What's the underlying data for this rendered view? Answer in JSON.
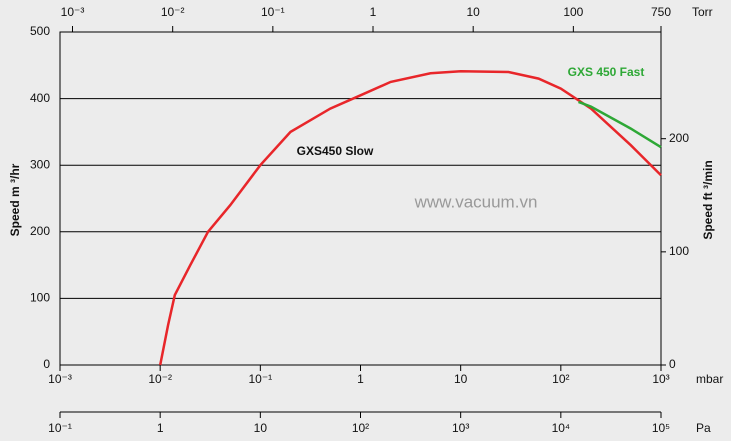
{
  "chart_data": {
    "type": "line",
    "x_scale": "log",
    "xlim": [
      0.001,
      1000
    ],
    "xticks": [
      {
        "value": 0.001,
        "label": "10⁻³"
      },
      {
        "value": 0.01,
        "label": "10⁻²"
      },
      {
        "value": 0.1,
        "label": "10⁻¹"
      },
      1,
      10,
      {
        "value": 100,
        "label": "10²"
      },
      {
        "value": 1000,
        "label": "10³"
      }
    ],
    "x_label": "mbar",
    "ylim": [
      0,
      500
    ],
    "yticks": [
      0,
      100,
      200,
      300,
      400,
      500
    ],
    "y_label": "Speed  m ³/hr",
    "y2lim": [
      0,
      294.3
    ],
    "y2ticks": [
      0,
      100,
      200
    ],
    "y2_label": "Speed  ft ³/min",
    "grid": true,
    "top_axis": {
      "label": "Torr",
      "xlim": [
        0.00075,
        750
      ],
      "xticks": [
        {
          "value": 0.001,
          "label": "10⁻³"
        },
        {
          "value": 0.01,
          "label": "10⁻²"
        },
        {
          "value": 0.1,
          "label": "10⁻¹"
        },
        1,
        10,
        100,
        750
      ]
    },
    "pa_axis": {
      "label": "Pa",
      "xlim": [
        0.1,
        100000
      ],
      "xticks": [
        {
          "value": 0.1,
          "label": "10⁻¹"
        },
        1,
        10,
        {
          "value": 100,
          "label": "10²"
        },
        {
          "value": 1000,
          "label": "10³"
        },
        {
          "value": 10000,
          "label": "10⁴"
        },
        {
          "value": 100000,
          "label": "10⁵"
        }
      ]
    },
    "series": [
      {
        "name": "GXS450 Slow",
        "color": "#e8262a",
        "x": [
          0.01,
          0.012,
          0.014,
          0.02,
          0.03,
          0.05,
          0.1,
          0.2,
          0.5,
          1,
          2,
          5,
          10,
          30,
          60,
          100,
          200,
          500,
          1000
        ],
        "values": [
          0,
          60,
          105,
          150,
          200,
          240,
          300,
          350,
          385,
          405,
          425,
          438,
          441,
          440,
          430,
          415,
          385,
          330,
          285
        ]
      },
      {
        "name": "GXS 450  Fast",
        "color": "#2ea836",
        "x": [
          150,
          200,
          500,
          1000
        ],
        "values": [
          395,
          388,
          355,
          327
        ]
      }
    ],
    "watermark": "www.vacuum.vn"
  }
}
